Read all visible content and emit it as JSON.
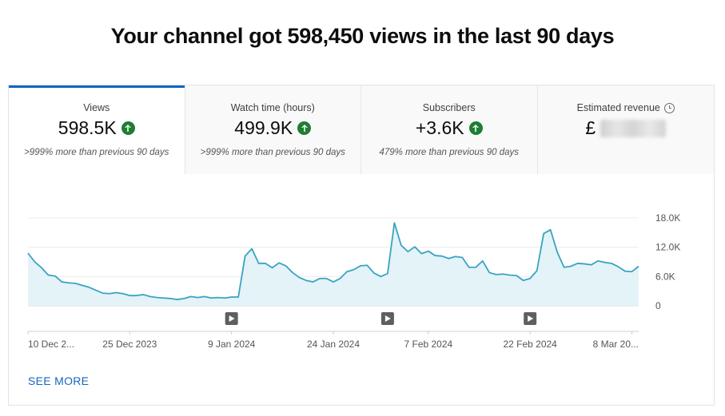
{
  "headline": "Your channel got 598,450 views in the last 90 days",
  "tabs": [
    {
      "title": "Views",
      "value": "598.5K",
      "sub": ">999% more than previous 90 days",
      "trend_icon": "arrow-up-icon"
    },
    {
      "title": "Watch time (hours)",
      "value": "499.9K",
      "sub": ">999% more than previous 90 days",
      "trend_icon": "arrow-up-icon"
    },
    {
      "title": "Subscribers",
      "value": "+3.6K",
      "sub": "479% more than previous 90 days",
      "trend_icon": "arrow-up-icon"
    },
    {
      "title": "Estimated revenue",
      "value": "£",
      "sub": "",
      "info_icon": "clock-icon"
    }
  ],
  "see_more": "SEE MORE",
  "colors": {
    "accent": "#1565c0",
    "line": "#3aa3c2",
    "fill": "#e3f3f7",
    "trend_up": "#1e7e34"
  },
  "chart_data": {
    "type": "area",
    "x_start": "2023-12-10",
    "x_end": "2024-03-09",
    "x_tick_labels": [
      "10 Dec 2...",
      "25 Dec 2023",
      "9 Jan 2024",
      "24 Jan 2024",
      "7 Feb 2024",
      "22 Feb 2024",
      "8 Mar 20..."
    ],
    "x_tick_dates": [
      "2023-12-10",
      "2023-12-25",
      "2024-01-09",
      "2024-01-24",
      "2024-02-07",
      "2024-02-22",
      "2024-03-08"
    ],
    "y_ticks": [
      0,
      6000,
      12000,
      18000
    ],
    "y_tick_labels": [
      "0",
      "6.0K",
      "12.0K",
      "18.0K"
    ],
    "ylim": [
      0,
      18000
    ],
    "grid": true,
    "video_markers": [
      "2024-01-09",
      "2024-02-01",
      "2024-02-22"
    ],
    "series": [
      {
        "dates": [
          "2023-12-10",
          "2023-12-11",
          "2023-12-12",
          "2023-12-13",
          "2023-12-14",
          "2023-12-15",
          "2023-12-16",
          "2023-12-17",
          "2023-12-18",
          "2023-12-19",
          "2023-12-20",
          "2023-12-21",
          "2023-12-22",
          "2023-12-23",
          "2023-12-24",
          "2023-12-25",
          "2023-12-26",
          "2023-12-27",
          "2023-12-28",
          "2023-12-29",
          "2023-12-30",
          "2023-12-31",
          "2024-01-01",
          "2024-01-02",
          "2024-01-03",
          "2024-01-04",
          "2024-01-05",
          "2024-01-06",
          "2024-01-07",
          "2024-01-08",
          "2024-01-09",
          "2024-01-10",
          "2024-01-11",
          "2024-01-12",
          "2024-01-13",
          "2024-01-14",
          "2024-01-15",
          "2024-01-16",
          "2024-01-17",
          "2024-01-18",
          "2024-01-19",
          "2024-01-20",
          "2024-01-21",
          "2024-01-22",
          "2024-01-23",
          "2024-01-24",
          "2024-01-25",
          "2024-01-26",
          "2024-01-27",
          "2024-01-28",
          "2024-01-29",
          "2024-01-30",
          "2024-01-31",
          "2024-02-01",
          "2024-02-02",
          "2024-02-03",
          "2024-02-04",
          "2024-02-05",
          "2024-02-06",
          "2024-02-07",
          "2024-02-08",
          "2024-02-09",
          "2024-02-10",
          "2024-02-11",
          "2024-02-12",
          "2024-02-13",
          "2024-02-14",
          "2024-02-15",
          "2024-02-16",
          "2024-02-17",
          "2024-02-18",
          "2024-02-19",
          "2024-02-20",
          "2024-02-21",
          "2024-02-22",
          "2024-02-23",
          "2024-02-24",
          "2024-02-25",
          "2024-02-26",
          "2024-02-27",
          "2024-02-28",
          "2024-02-29",
          "2024-03-01",
          "2024-03-02",
          "2024-03-03",
          "2024-03-04",
          "2024-03-05",
          "2024-03-06",
          "2024-03-07",
          "2024-03-08",
          "2024-03-09"
        ],
        "values": [
          10800,
          9000,
          7800,
          6300,
          6100,
          4900,
          4700,
          4600,
          4200,
          3800,
          3200,
          2600,
          2500,
          2700,
          2500,
          2100,
          2100,
          2300,
          1900,
          1700,
          1600,
          1500,
          1300,
          1500,
          1900,
          1700,
          1900,
          1600,
          1700,
          1600,
          1800,
          1800,
          10200,
          11700,
          8700,
          8700,
          7800,
          8800,
          8200,
          6800,
          5800,
          5200,
          4900,
          5600,
          5600,
          4900,
          5600,
          7000,
          7400,
          8200,
          8300,
          6700,
          6000,
          6600,
          17000,
          12400,
          11100,
          12100,
          10700,
          11200,
          10300,
          10200,
          9700,
          10100,
          9900,
          7900,
          7900,
          9200,
          6800,
          6400,
          6500,
          6300,
          6200,
          5200,
          5600,
          7200,
          14800,
          15600,
          11000,
          7900,
          8100,
          8700,
          8600,
          8400,
          9200,
          8900,
          8700,
          8000,
          7100,
          7000,
          8100
        ]
      }
    ]
  }
}
